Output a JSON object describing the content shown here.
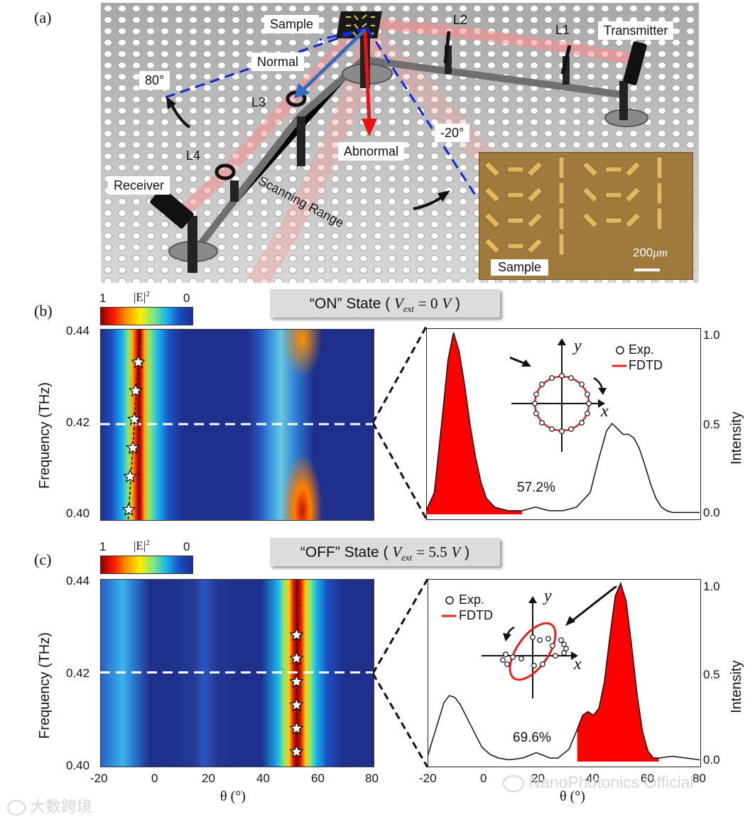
{
  "panels": {
    "a": "(a)",
    "b": "(b)",
    "c": "(c)"
  },
  "setup": {
    "labels": {
      "sample": "Sample",
      "normal": "Normal",
      "angle_80": "80°",
      "l1": "L1",
      "l2": "L2",
      "l3": "L3",
      "l4": "L4",
      "transmitter": "Transmitter",
      "receiver": "Receiver",
      "abnormal": "Abnormal",
      "angle_neg20": "-20°",
      "scanning_range": "Scanning Range"
    },
    "inset": {
      "scale_value": "200",
      "scale_unit": "μm",
      "label": "Sample"
    }
  },
  "colorbar": {
    "max": "1",
    "title": "|E|",
    "exponent": "2",
    "min": "0"
  },
  "panel_b": {
    "state_prefix": "“ON” State (",
    "state_var": "V",
    "state_sub": "ext",
    "state_eq": "= 0",
    "state_unit": "V",
    "state_suffix": ")",
    "efficiency": "57.2%"
  },
  "panel_c": {
    "state_prefix": "“OFF” State (",
    "state_var": "V",
    "state_sub": "ext",
    "state_eq": "= 5.5",
    "state_unit": "V",
    "state_suffix": ")",
    "efficiency": "69.6%"
  },
  "legend": {
    "exp": "Exp.",
    "fdtd": "FDTD"
  },
  "inset_axes": {
    "x": "x",
    "y": "y"
  },
  "axes": {
    "map_ylabel": "Frequency (THz)",
    "map_xlabel": "θ (°)",
    "map_yticks": [
      "0.44",
      "0.42",
      "0.40"
    ],
    "map_xticks": [
      "-20",
      "0",
      "20",
      "40",
      "60",
      "80"
    ],
    "line_ylabel": "Intensity",
    "line_yticks": [
      "1.0",
      "0.5",
      "0.0"
    ],
    "line_xticks": [
      "-20",
      "0",
      "20",
      "40",
      "60",
      "80"
    ],
    "line_xlabel": "θ (°)"
  },
  "watermarks": {
    "left": "大数跨境",
    "right": "NanoPhotonics Official"
  },
  "colors": {
    "red": "#ff0000",
    "dark_blue": "#1f2f8c",
    "fdtd": "#e8201c"
  },
  "chart_data": [
    {
      "type": "heatmap",
      "panel": "b",
      "xlabel": "θ (°)",
      "ylabel": "Frequency (THz)",
      "xlim": [
        -20,
        80
      ],
      "ylim": [
        0.4,
        0.44
      ],
      "cut_frequency": 0.42,
      "experiment_peak_theta": [
        -9.5,
        -9,
        -8,
        -7.5,
        -7,
        -6
      ],
      "experiment_frequency": [
        0.402,
        0.409,
        0.415,
        0.421,
        0.427,
        0.433
      ],
      "colorbar": {
        "title": "|E|²",
        "range": [
          0,
          1
        ]
      }
    },
    {
      "type": "line",
      "panel": "b",
      "xlabel": "θ (°)",
      "ylabel": "Intensity",
      "xlim": [
        -20,
        80
      ],
      "ylim": [
        0,
        1
      ],
      "x": [
        -20,
        -17,
        -14,
        -12,
        -10,
        -8,
        -6,
        -4,
        -2,
        0,
        2,
        5,
        10,
        15,
        20,
        25,
        30,
        35,
        40,
        43,
        46,
        48,
        50,
        52,
        54,
        56,
        58,
        60,
        62,
        64,
        66,
        68,
        70,
        75,
        80
      ],
      "y": [
        0.02,
        0.12,
        0.55,
        0.85,
        1.0,
        0.9,
        0.72,
        0.5,
        0.32,
        0.18,
        0.09,
        0.04,
        0.02,
        0.02,
        0.04,
        0.02,
        0.02,
        0.04,
        0.12,
        0.3,
        0.46,
        0.5,
        0.47,
        0.44,
        0.44,
        0.42,
        0.36,
        0.27,
        0.17,
        0.09,
        0.04,
        0.02,
        0.01,
        0.01,
        0.01
      ],
      "shaded_range": [
        -20,
        17
      ],
      "shaded_fraction_label": "57.2%"
    },
    {
      "type": "heatmap",
      "panel": "c",
      "xlabel": "θ (°)",
      "ylabel": "Frequency (THz)",
      "xlim": [
        -20,
        80
      ],
      "ylim": [
        0.4,
        0.44
      ],
      "cut_frequency": 0.42,
      "experiment_peak_theta": [
        52,
        52,
        52,
        52,
        52,
        52
      ],
      "experiment_frequency": [
        0.403,
        0.408,
        0.413,
        0.418,
        0.423,
        0.428
      ],
      "colorbar": {
        "title": "|E|²",
        "range": [
          0,
          1
        ]
      }
    },
    {
      "type": "line",
      "panel": "c",
      "xlabel": "θ (°)",
      "ylabel": "Intensity",
      "xlim": [
        -20,
        80
      ],
      "ylim": [
        0,
        1
      ],
      "x": [
        -20,
        -17,
        -14,
        -12,
        -10,
        -8,
        -6,
        -4,
        -2,
        0,
        3,
        6,
        10,
        15,
        20,
        25,
        28,
        32,
        35,
        37,
        39,
        41,
        43,
        45,
        47,
        49,
        51,
        53,
        55,
        57,
        59,
        61,
        63,
        65,
        70,
        75,
        80
      ],
      "y": [
        0.03,
        0.18,
        0.33,
        0.37,
        0.36,
        0.32,
        0.26,
        0.2,
        0.14,
        0.08,
        0.04,
        0.02,
        0.01,
        0.02,
        0.05,
        0.02,
        0.02,
        0.07,
        0.18,
        0.26,
        0.28,
        0.26,
        0.3,
        0.45,
        0.7,
        0.93,
        1.0,
        0.9,
        0.65,
        0.38,
        0.17,
        0.06,
        0.02,
        0.02,
        0.03,
        0.02,
        0.01
      ],
      "shaded_range": [
        35,
        65
      ],
      "shaded_fraction_label": "69.6%"
    }
  ]
}
